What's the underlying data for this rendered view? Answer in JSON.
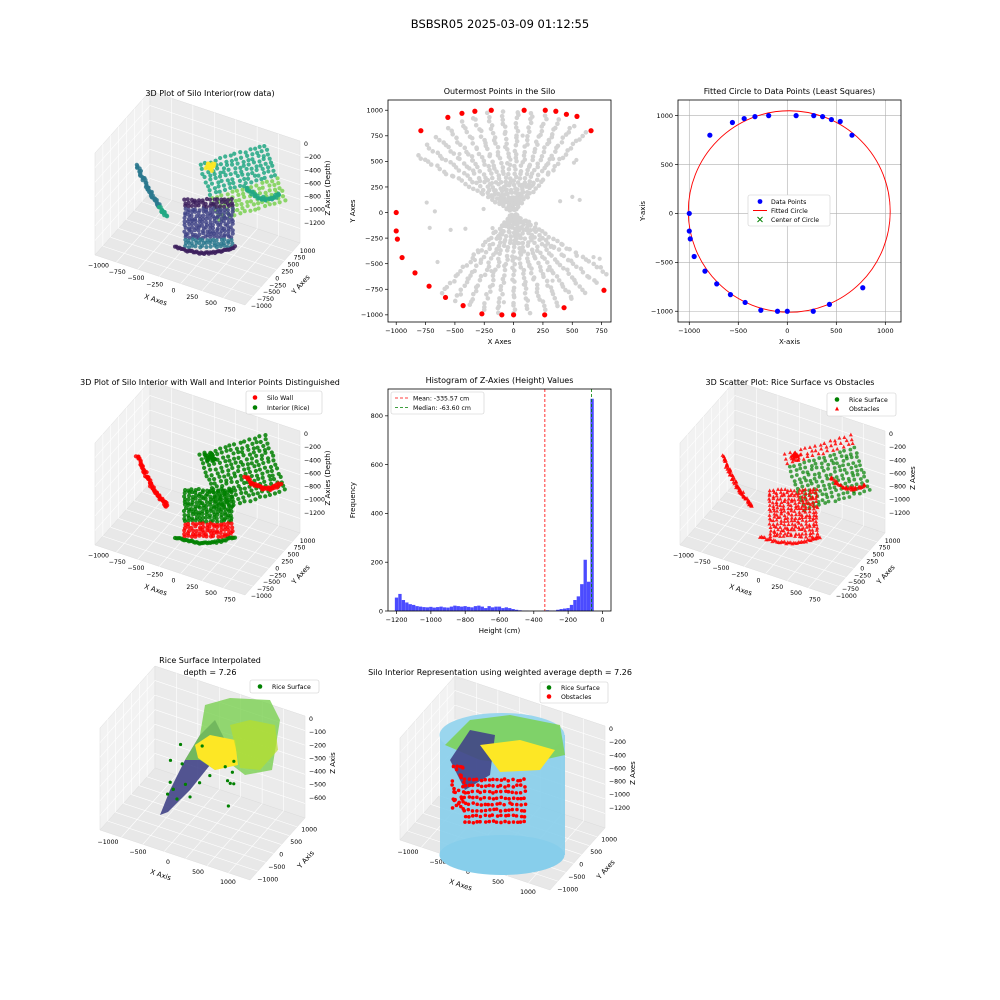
{
  "suptitle": "BSBSR05 2025-03-09 01:12:55",
  "colors": {
    "red": "#ff0000",
    "green": "#008000",
    "blue": "#0000ff",
    "gray": "#d3d3d3",
    "hist": "#4b4bff",
    "sky": "#87ceeb",
    "yellow": "#f5e51d",
    "viridis": [
      "#3b1d5c",
      "#414487",
      "#2a788e",
      "#22a884",
      "#7ad151",
      "#fde725"
    ]
  },
  "chart_data": [
    {
      "id": "p1",
      "type": "scatter",
      "title": "3D Plot of Silo Interior(row data)",
      "xlabel": "X Axes",
      "ylabel": "Y Axes",
      "zlabel": "Z Axies (Depth)",
      "xticks": [
        "−1000",
        "−750",
        "−500",
        "−250",
        "0",
        "250",
        "500",
        "750"
      ],
      "yticks": [
        "−1000",
        "−750",
        "−500",
        "−250",
        "0",
        "250",
        "500",
        "750",
        "1000"
      ],
      "zticks": [
        "0",
        "−200",
        "−400",
        "−600",
        "−800",
        "−1000",
        "−1200"
      ],
      "colormap": "viridis"
    },
    {
      "id": "p2",
      "type": "scatter",
      "title": "Outermost Points in the Silo",
      "xlabel": "X Axes",
      "ylabel": "Y Axes",
      "xlim": [
        -1070,
        830
      ],
      "ylim": [
        -1070,
        1100
      ],
      "xticks": [
        -1000,
        -750,
        -500,
        -250,
        0,
        250,
        500,
        750
      ],
      "yticks": [
        -1000,
        -750,
        -500,
        -250,
        0,
        250,
        500,
        750,
        1000
      ],
      "series": [
        {
          "color": "gray"
        },
        {
          "color": "red",
          "points": [
            [
              -1000,
              0
            ],
            [
              -1000,
              -180
            ],
            [
              -990,
              -260
            ],
            [
              -950,
              -440
            ],
            [
              -840,
              -590
            ],
            [
              -720,
              -720
            ],
            [
              -580,
              -830
            ],
            [
              -430,
              -910
            ],
            [
              -270,
              -990
            ],
            [
              -100,
              -1000
            ],
            [
              0,
              -1000
            ],
            [
              265,
              -1000
            ],
            [
              430,
              -930
            ],
            [
              770,
              -760
            ],
            [
              -790,
              800
            ],
            [
              -560,
              930
            ],
            [
              -440,
              970
            ],
            [
              -330,
              990
            ],
            [
              -190,
              1000
            ],
            [
              90,
              1000
            ],
            [
              270,
              1000
            ],
            [
              360,
              990
            ],
            [
              450,
              960
            ],
            [
              660,
              800
            ],
            [
              540,
              940
            ]
          ]
        }
      ]
    },
    {
      "id": "p3",
      "type": "scatter",
      "title": "Fitted Circle to Data Points (Least Squares)",
      "xlabel": "X-axis",
      "ylabel": "Y-axis",
      "xlim": [
        -1115,
        1160
      ],
      "ylim": [
        -1110,
        1160
      ],
      "xticks": [
        -1000,
        -500,
        0,
        500,
        1000
      ],
      "yticks": [
        -1000,
        -500,
        0,
        500,
        1000
      ],
      "grid": true,
      "legend": "center",
      "circle": {
        "cx": 20,
        "cy": 20,
        "r": 1030
      },
      "series": [
        {
          "name": "Data Points",
          "color": "blue",
          "points": [
            [
              -1000,
              0
            ],
            [
              -1000,
              -180
            ],
            [
              -990,
              -260
            ],
            [
              -950,
              -440
            ],
            [
              -840,
              -590
            ],
            [
              -720,
              -720
            ],
            [
              -580,
              -830
            ],
            [
              -430,
              -910
            ],
            [
              -270,
              -990
            ],
            [
              -100,
              -1000
            ],
            [
              0,
              -1000
            ],
            [
              265,
              -1000
            ],
            [
              430,
              -930
            ],
            [
              770,
              -760
            ],
            [
              -790,
              800
            ],
            [
              -560,
              930
            ],
            [
              -440,
              970
            ],
            [
              -330,
              990
            ],
            [
              -190,
              1000
            ],
            [
              90,
              1000
            ],
            [
              270,
              1000
            ],
            [
              360,
              990
            ],
            [
              450,
              960
            ],
            [
              660,
              800
            ],
            [
              540,
              940
            ]
          ]
        },
        {
          "name": "Fitted Circle",
          "color": "red"
        },
        {
          "name": "Center of Circle",
          "color": "green",
          "points": [
            [
              20,
              20
            ]
          ]
        }
      ]
    },
    {
      "id": "p4",
      "type": "scatter",
      "title": "3D Plot of Silo Interior with Wall and Interior Points Distinguished",
      "xlabel": "X Axes",
      "ylabel": "Y Axes",
      "zlabel": "Z Axies (Depth)",
      "xticks": [
        "−1000",
        "−750",
        "−500",
        "−250",
        "0",
        "250",
        "500",
        "750"
      ],
      "yticks": [
        "−1000",
        "−750",
        "−500",
        "−250",
        "0",
        "250",
        "500",
        "750",
        "1000"
      ],
      "zticks": [
        "0",
        "−200",
        "−400",
        "−600",
        "−800",
        "−1000",
        "−1200"
      ],
      "legend": "top-right",
      "series": [
        {
          "name": "Silo Wall",
          "color": "red"
        },
        {
          "name": "Interior (Rice)",
          "color": "green"
        }
      ]
    },
    {
      "id": "p5",
      "type": "bar",
      "title": "Histogram of Z-Axies (Height) Values",
      "xlabel": "Height (cm)",
      "ylabel": "Frequency",
      "xlim": [
        -1250,
        50
      ],
      "ylim": [
        0,
        910
      ],
      "xticks": [
        -1200,
        -1000,
        -800,
        -600,
        -400,
        -200,
        0
      ],
      "yticks": [
        0,
        200,
        400,
        600,
        800
      ],
      "bin_start": -1210,
      "bin_width": 20,
      "counts": [
        55,
        70,
        45,
        35,
        28,
        25,
        20,
        18,
        16,
        15,
        17,
        14,
        16,
        18,
        15,
        14,
        18,
        22,
        20,
        18,
        20,
        17,
        15,
        20,
        22,
        18,
        12,
        20,
        15,
        18,
        18,
        12,
        15,
        12,
        8,
        5,
        3,
        1,
        1,
        0,
        0,
        0,
        0,
        1,
        3,
        2,
        2,
        5,
        8,
        10,
        12,
        25,
        45,
        60,
        110,
        210,
        120,
        870
      ],
      "mean": -335.57,
      "median": -63.6,
      "legend": "top-left",
      "series": [
        {
          "name": "Mean: -335.57 cm",
          "color": "red"
        },
        {
          "name": "Median: -63.60 cm",
          "color": "green"
        }
      ]
    },
    {
      "id": "p6",
      "type": "scatter",
      "title": "3D Scatter Plot: Rice Surface vs Obstacles",
      "xlabel": "X Axes",
      "ylabel": "Y Axes",
      "zlabel": "Z Axes",
      "xticks": [
        "−1000",
        "−750",
        "−500",
        "−250",
        "0",
        "250",
        "500",
        "750"
      ],
      "yticks": [
        "−1000",
        "−750",
        "−500",
        "−250",
        "0",
        "250",
        "500",
        "750",
        "1000"
      ],
      "zticks": [
        "0",
        "−200",
        "−400",
        "−600",
        "−800",
        "−1000",
        "−1200"
      ],
      "legend": "top-right",
      "series": [
        {
          "name": "Rice Surface",
          "color": "green"
        },
        {
          "name": "Obstacles",
          "color": "red"
        }
      ]
    },
    {
      "id": "p7",
      "type": "area",
      "title": "Rice Surface Interpolated",
      "subtitle": "depth = 7.26",
      "xlabel": "X Axis",
      "ylabel": "Y Axis",
      "zlabel": "Z Axis",
      "xticks": [
        "−1000",
        "−500",
        "0",
        "500",
        "1000"
      ],
      "yticks": [
        "−1000",
        "−500",
        "0",
        "500",
        "1000"
      ],
      "zticks": [
        "0",
        "−100",
        "−200",
        "−300",
        "−400",
        "−500",
        "−600"
      ],
      "legend": "top-right",
      "series": [
        {
          "name": "Rice Surface",
          "color": "green"
        }
      ]
    },
    {
      "id": "p8",
      "type": "area",
      "title": "Silo Interior Representation using weighted average depth = 7.26",
      "xlabel": "X Axes",
      "ylabel": "Y Axes",
      "zlabel": "Z Axes",
      "xticks": [
        "−1000",
        "−500",
        "0",
        "500",
        "1000"
      ],
      "yticks": [
        "−1000",
        "−500",
        "0",
        "500",
        "1000"
      ],
      "zticks": [
        "0",
        "−200",
        "−400",
        "−600",
        "−800",
        "−1000",
        "−1200"
      ],
      "legend": "top-right",
      "series": [
        {
          "name": "Rice Surface",
          "color": "green"
        },
        {
          "name": "Obstacles",
          "color": "red"
        }
      ]
    }
  ]
}
